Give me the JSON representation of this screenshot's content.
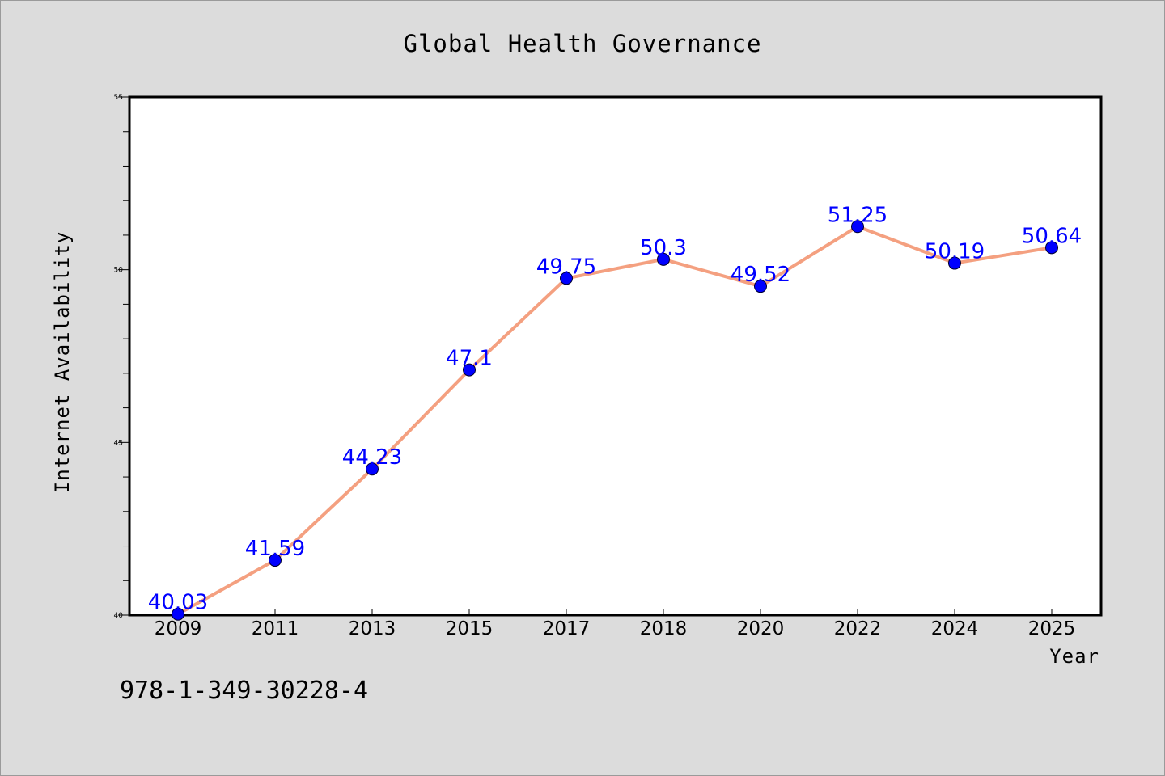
{
  "chart_data": {
    "type": "line",
    "title": "Global Health Governance",
    "xlabel": "Year",
    "ylabel": "Internet Availability",
    "categories": [
      "2009",
      "2011",
      "2013",
      "2015",
      "2017",
      "2018",
      "2020",
      "2022",
      "2024",
      "2025"
    ],
    "series": [
      {
        "values": [
          40.03,
          41.59,
          44.23,
          47.1,
          49.75,
          50.3,
          49.52,
          51.25,
          50.19,
          50.64
        ],
        "labels": [
          "40.03",
          "41.59",
          "44.23",
          "47.1",
          "49.75",
          "50.3",
          "49.52",
          "51.25",
          "50.19",
          "50.64"
        ],
        "line_color": "#f4a080",
        "marker_color": "#0000ff"
      }
    ],
    "ylim": [
      40,
      55
    ],
    "yticks": [
      40,
      45,
      50,
      55
    ],
    "ytick_labels": [
      "40",
      "45",
      "50",
      "55"
    ],
    "grid": false,
    "legend": "none"
  },
  "footer": {
    "isbn": "978-1-349-30228-4"
  }
}
